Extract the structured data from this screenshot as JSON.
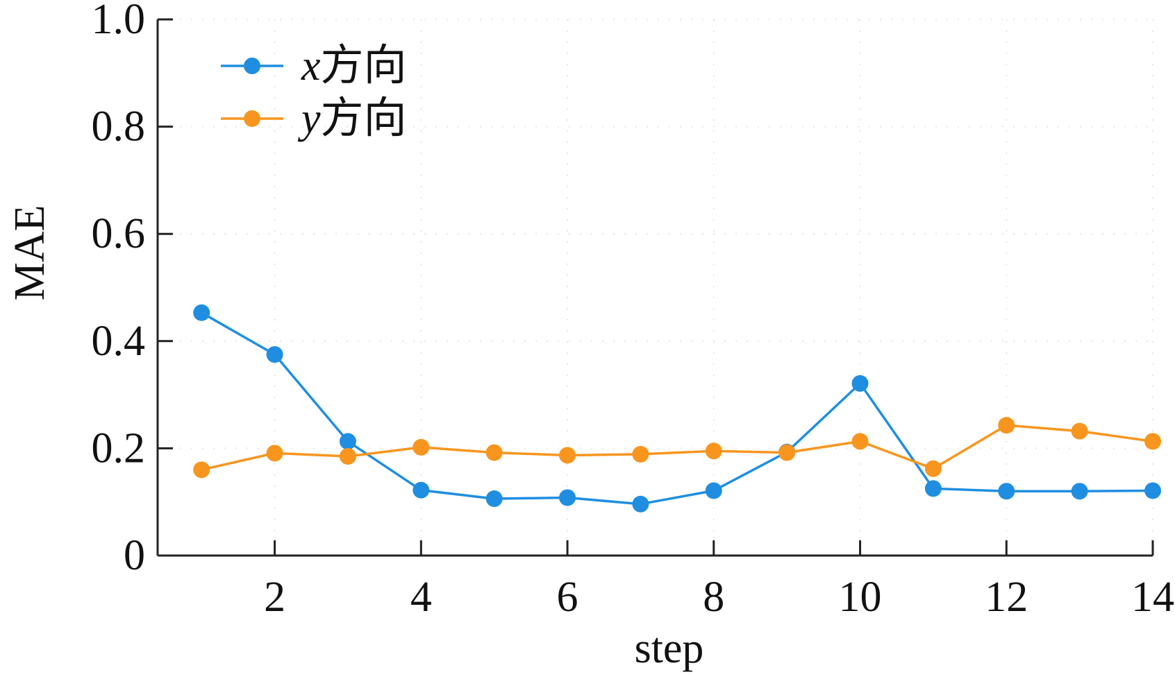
{
  "chart_data": {
    "type": "line",
    "xlabel": "step",
    "ylabel": "MAE",
    "xlim": [
      0.4,
      14
    ],
    "ylim": [
      0,
      1.0
    ],
    "x_ticks": [
      2,
      4,
      6,
      8,
      10,
      12,
      14
    ],
    "y_ticks": [
      0,
      0.2,
      0.4,
      0.6,
      0.8,
      1.0
    ],
    "y_tick_labels": [
      "0",
      "0.2",
      "0.4",
      "0.6",
      "0.8",
      "1.0"
    ],
    "grid": true,
    "legend_position": "top-left",
    "x": [
      1,
      2,
      3,
      4,
      5,
      6,
      7,
      8,
      9,
      10,
      11,
      12,
      13,
      14
    ],
    "series": [
      {
        "name": "x方向",
        "legend_var": "x",
        "legend_suffix": "方向",
        "color": "#1f8ee0",
        "values": [
          0.453,
          0.375,
          0.213,
          0.122,
          0.106,
          0.108,
          0.096,
          0.121,
          0.193,
          0.321,
          0.125,
          0.12,
          0.12,
          0.121
        ]
      },
      {
        "name": "y方向",
        "legend_var": "y",
        "legend_suffix": "方向",
        "color": "#f7951e",
        "values": [
          0.16,
          0.191,
          0.185,
          0.202,
          0.192,
          0.187,
          0.189,
          0.195,
          0.192,
          0.213,
          0.162,
          0.243,
          0.232,
          0.213
        ]
      }
    ]
  }
}
